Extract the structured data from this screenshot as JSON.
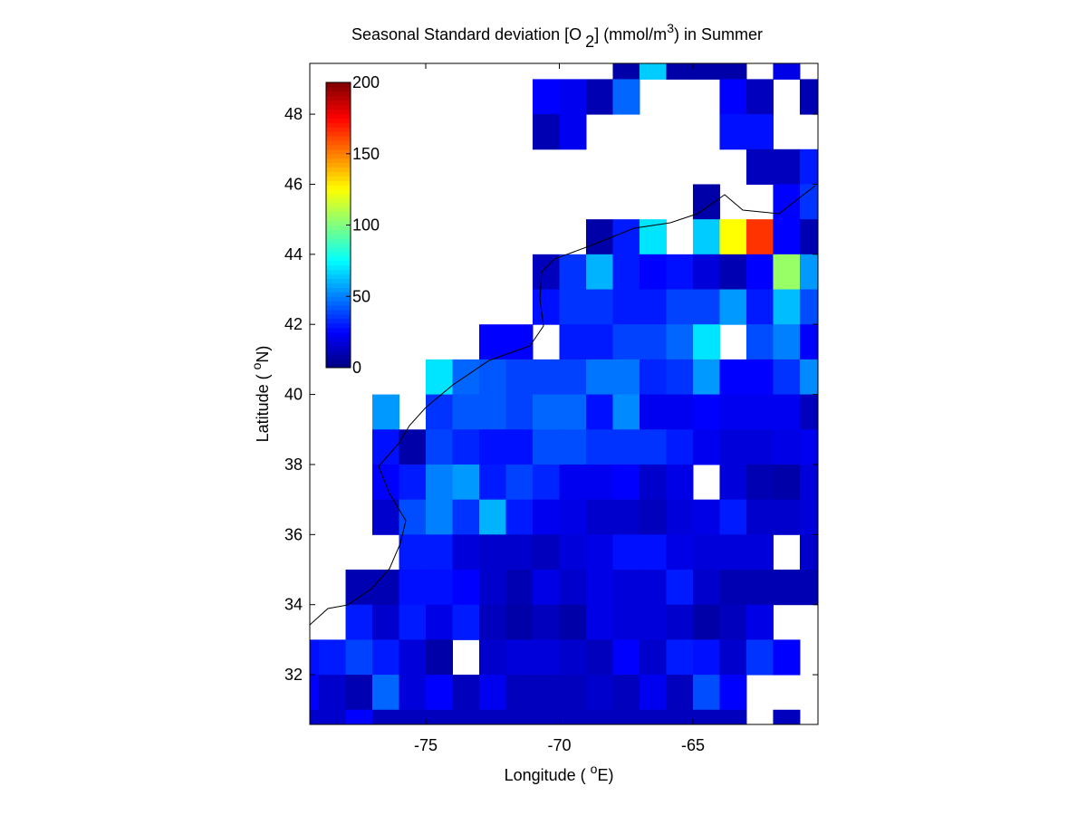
{
  "chart_data": {
    "type": "heatmap",
    "title": [
      "Seasonal Standard deviation [O",
      "2",
      "] (mmol/m",
      "3",
      ") in  Summer"
    ],
    "xlabel": [
      "Longitude ( ",
      "o",
      "E)"
    ],
    "ylabel": [
      "Latitude ( ",
      "o",
      "N)"
    ],
    "x": [
      -79.5,
      -78.5,
      -77.5,
      -76.5,
      -75.5,
      -74.5,
      -73.5,
      -72.5,
      -71.5,
      -70.5,
      -69.5,
      -68.5,
      -67.5,
      -66.5,
      -65.5,
      -64.5,
      -63.5,
      -62.5,
      -61.5,
      -60.5
    ],
    "y": [
      49.5,
      48.5,
      47.5,
      46.5,
      45.5,
      44.5,
      43.5,
      42.5,
      41.5,
      40.5,
      39.5,
      38.5,
      37.5,
      36.5,
      35.5,
      34.5,
      33.5,
      32.5,
      31.5,
      30.5
    ],
    "z": [
      [
        null,
        null,
        null,
        null,
        null,
        null,
        null,
        null,
        null,
        null,
        null,
        null,
        8,
        65,
        8,
        8,
        8,
        null,
        20,
        null
      ],
      [
        null,
        null,
        null,
        null,
        null,
        null,
        null,
        null,
        null,
        25,
        22,
        10,
        45,
        null,
        null,
        null,
        25,
        12,
        null,
        10
      ],
      [
        null,
        null,
        null,
        null,
        null,
        null,
        null,
        null,
        null,
        10,
        22,
        null,
        null,
        null,
        null,
        null,
        28,
        28,
        null,
        null
      ],
      [
        null,
        null,
        null,
        null,
        null,
        null,
        null,
        null,
        null,
        null,
        null,
        null,
        null,
        null,
        null,
        null,
        null,
        12,
        12,
        30
      ],
      [
        null,
        null,
        null,
        null,
        null,
        null,
        null,
        null,
        null,
        null,
        null,
        null,
        null,
        null,
        null,
        8,
        null,
        null,
        25,
        35
      ],
      [
        null,
        null,
        null,
        null,
        null,
        null,
        null,
        null,
        null,
        null,
        null,
        8,
        30,
        70,
        null,
        65,
        125,
        165,
        25,
        10
      ],
      [
        null,
        null,
        null,
        null,
        null,
        null,
        null,
        null,
        null,
        12,
        35,
        60,
        30,
        25,
        28,
        18,
        10,
        25,
        105,
        55
      ],
      [
        null,
        null,
        null,
        null,
        null,
        null,
        null,
        null,
        null,
        28,
        35,
        35,
        30,
        30,
        38,
        38,
        55,
        30,
        62,
        40
      ],
      [
        null,
        null,
        null,
        null,
        null,
        null,
        null,
        25,
        25,
        null,
        30,
        30,
        38,
        38,
        45,
        70,
        null,
        40,
        50,
        25
      ],
      [
        null,
        null,
        null,
        null,
        null,
        70,
        45,
        42,
        38,
        38,
        38,
        48,
        48,
        32,
        35,
        55,
        25,
        25,
        35,
        52
      ],
      [
        null,
        null,
        null,
        55,
        null,
        35,
        42,
        42,
        38,
        45,
        45,
        28,
        52,
        22,
        22,
        25,
        22,
        22,
        22,
        12
      ],
      [
        null,
        null,
        null,
        28,
        8,
        38,
        32,
        28,
        28,
        40,
        40,
        35,
        35,
        35,
        30,
        22,
        18,
        18,
        20,
        22
      ],
      [
        null,
        null,
        null,
        25,
        30,
        50,
        55,
        30,
        38,
        32,
        22,
        22,
        25,
        15,
        20,
        null,
        18,
        10,
        8,
        18
      ],
      [
        null,
        null,
        null,
        15,
        40,
        50,
        35,
        60,
        30,
        22,
        20,
        15,
        15,
        12,
        18,
        20,
        30,
        15,
        15,
        18
      ],
      [
        null,
        null,
        null,
        null,
        30,
        30,
        18,
        15,
        15,
        12,
        18,
        20,
        28,
        28,
        20,
        18,
        18,
        18,
        null,
        15
      ],
      [
        null,
        null,
        10,
        10,
        28,
        28,
        25,
        15,
        10,
        20,
        15,
        20,
        18,
        18,
        30,
        15,
        10,
        10,
        10,
        10
      ],
      [
        null,
        null,
        30,
        15,
        30,
        20,
        30,
        12,
        8,
        12,
        8,
        20,
        18,
        18,
        15,
        8,
        12,
        20,
        null,
        null
      ],
      [
        28,
        30,
        38,
        30,
        18,
        8,
        null,
        15,
        18,
        18,
        15,
        12,
        25,
        15,
        30,
        28,
        15,
        35,
        25,
        null
      ],
      [
        25,
        15,
        10,
        45,
        18,
        25,
        12,
        22,
        12,
        12,
        12,
        15,
        12,
        22,
        12,
        40,
        25,
        null,
        null,
        null
      ],
      [
        15,
        15,
        25,
        12,
        12,
        12,
        12,
        12,
        12,
        12,
        12,
        12,
        12,
        12,
        12,
        12,
        12,
        null,
        12,
        null
      ]
    ],
    "xlim": [
      -79.34,
      -60.32
    ],
    "ylim": [
      30.58,
      49.45
    ],
    "xticks": [
      -75,
      -70,
      -65
    ],
    "yticks": [
      32,
      34,
      36,
      38,
      40,
      42,
      44,
      46,
      48
    ],
    "colormap": "jet",
    "clim": [
      0,
      200
    ],
    "cticks": [
      0,
      50,
      100,
      150,
      200
    ]
  }
}
